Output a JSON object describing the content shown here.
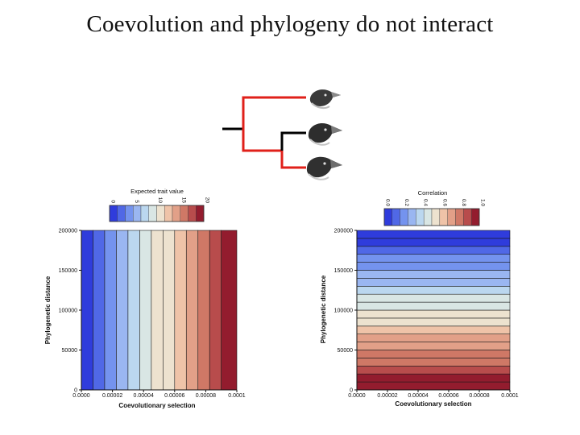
{
  "slide": {
    "title": "Coevolution and phylogeny do not interact"
  },
  "tree": {
    "species_icons": [
      "finch-head-icon",
      "finch-head-icon",
      "finch-head-icon"
    ],
    "branch_colors": {
      "highlight": "#e0201a",
      "plain": "#000000"
    }
  },
  "palette": [
    "#2f3cdc",
    "#5068e6",
    "#7493ee",
    "#9ab6f1",
    "#bbd7ef",
    "#d9e6e4",
    "#ede2cf",
    "#efc3a8",
    "#e2a088",
    "#cf7866",
    "#b84c4c",
    "#931c2e"
  ],
  "chart_data": [
    {
      "type": "heatmap",
      "title": "",
      "xlabel": "Coevolutionary selection",
      "ylabel": "Phylogenetic distance",
      "xlim": [
        0,
        0.0001
      ],
      "ylim": [
        0,
        200000
      ],
      "x_ticks": [
        "0.0000",
        "0.00002",
        "0.00004",
        "0.00006",
        "0.00008",
        "0.0001"
      ],
      "y_ticks": [
        "0",
        "50000",
        "100000",
        "150000",
        "200000"
      ],
      "legend": {
        "title": "Expected trait value",
        "ticks": [
          "0",
          "5",
          "10",
          "15",
          "20"
        ],
        "range": [
          0,
          20
        ]
      },
      "bands_axis": "x",
      "band_edges": [
        0,
        7.5e-06,
        1.5e-05,
        2.25e-05,
        3e-05,
        3.75e-05,
        4.5e-05,
        5.25e-05,
        6e-05,
        6.75e-05,
        7.5e-05,
        8.25e-05,
        9e-05,
        0.0001
      ],
      "band_values": [
        1.0,
        2.5,
        4.0,
        5.5,
        7.0,
        8.5,
        10.0,
        11.5,
        13.0,
        14.5,
        16.0,
        17.5,
        19.0
      ],
      "note_grid": false
    },
    {
      "type": "heatmap",
      "title": "",
      "xlabel": "Coevolutionary selection",
      "ylabel": "Phylogenetic distance",
      "xlim": [
        0,
        0.0001
      ],
      "ylim": [
        0,
        200000
      ],
      "x_ticks": [
        "0.0000",
        "0.00002",
        "0.00004",
        "0.00006",
        "0.00008",
        "0.0001"
      ],
      "y_ticks": [
        "0",
        "50000",
        "100000",
        "150000",
        "200000"
      ],
      "legend": {
        "title": "Correlation",
        "ticks": [
          "0.0",
          "0.2",
          "0.4",
          "0.6",
          "0.8",
          "1.0"
        ],
        "range": [
          0,
          1
        ]
      },
      "bands_axis": "y",
      "band_edges": [
        0,
        10000,
        20000,
        30000,
        40000,
        50000,
        60000,
        70000,
        80000,
        90000,
        100000,
        110000,
        120000,
        130000,
        140000,
        150000,
        160000,
        170000,
        180000,
        190000,
        200000
      ],
      "band_values": [
        0.975,
        0.925,
        0.875,
        0.825,
        0.775,
        0.725,
        0.675,
        0.625,
        0.575,
        0.525,
        0.475,
        0.425,
        0.375,
        0.325,
        0.275,
        0.225,
        0.175,
        0.125,
        0.075,
        0.025
      ],
      "note_grid": false
    }
  ]
}
